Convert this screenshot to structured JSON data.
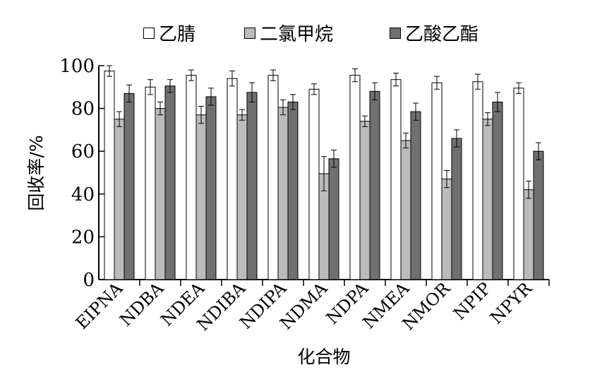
{
  "chart_data": {
    "type": "bar",
    "title": "",
    "xlabel": "化合物",
    "ylabel": "回收率/%",
    "ylim": [
      0,
      100
    ],
    "yticks": [
      0,
      20,
      40,
      60,
      80,
      100
    ],
    "grid": false,
    "legend_position": "top",
    "categories": [
      "EIPNA",
      "NDBA",
      "NDEA",
      "NDIBA",
      "NDIPA",
      "NDMA",
      "NDPA",
      "NMEA",
      "NMOR",
      "NPIP",
      "NPYR"
    ],
    "series": [
      {
        "name": "乙腈",
        "color": "#ffffff",
        "values": [
          97.5,
          90,
          95.5,
          94,
          95.5,
          89,
          95.5,
          93.5,
          92,
          92.5,
          89.5
        ],
        "errors": [
          2.5,
          3.5,
          2.5,
          3.5,
          2.5,
          2.5,
          3,
          3,
          3,
          3.5,
          2.5
        ]
      },
      {
        "name": "二氯甲烷",
        "color": "#bbbbbb",
        "values": [
          75,
          80,
          77,
          77,
          80.5,
          49.5,
          74,
          65,
          47,
          75,
          42
        ],
        "errors": [
          3.5,
          3,
          4,
          2.5,
          3.5,
          8,
          2.5,
          3.5,
          4,
          3,
          4
        ]
      },
      {
        "name": "乙酸乙酯",
        "color": "#707070",
        "values": [
          87,
          90.5,
          85.5,
          87.5,
          83,
          56.5,
          88,
          78.5,
          66,
          83,
          60
        ],
        "errors": [
          4,
          3,
          4,
          4.5,
          3.5,
          4,
          4,
          4,
          4,
          4.5,
          4
        ]
      }
    ]
  }
}
